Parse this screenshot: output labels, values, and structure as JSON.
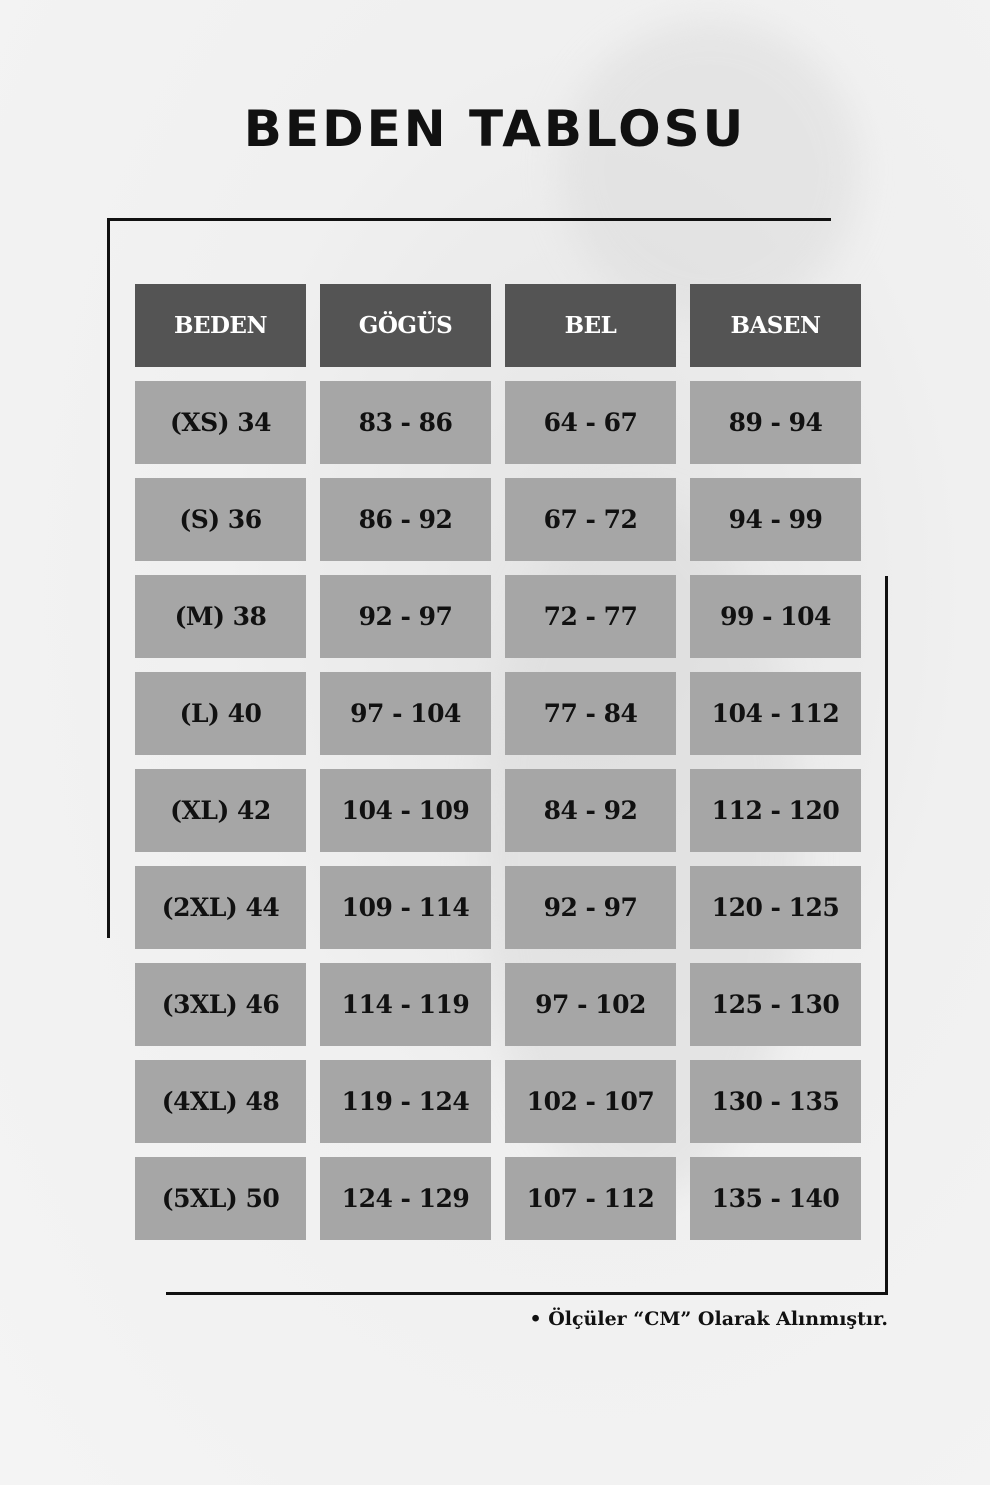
{
  "title": "BEDEN TABLOSU",
  "table": {
    "headers": [
      "BEDEN",
      "GÖGÜS",
      "BEL",
      "BASEN"
    ],
    "rows": [
      [
        "(XS) 34",
        "83 - 86",
        "64 - 67",
        "89 - 94"
      ],
      [
        "(S) 36",
        "86 - 92",
        "67 - 72",
        "94 - 99"
      ],
      [
        "(M) 38",
        "92 - 97",
        "72 - 77",
        "99 - 104"
      ],
      [
        "(L) 40",
        "97 - 104",
        "77 - 84",
        "104 - 112"
      ],
      [
        "(XL) 42",
        "104 - 109",
        "84 - 92",
        "112 - 120"
      ],
      [
        "(2XL) 44",
        "109 - 114",
        "92 - 97",
        "120 - 125"
      ],
      [
        "(3XL) 46",
        "114 - 119",
        "97 - 102",
        "125 - 130"
      ],
      [
        "(4XL) 48",
        "119 - 124",
        "102 - 107",
        "130 - 135"
      ],
      [
        "(5XL) 50",
        "124 - 129",
        "107 - 112",
        "135 - 140"
      ]
    ]
  },
  "note": "• Ölçüler “CM” Olarak Alınmıştır.",
  "colors": {
    "header_bg": "#545454",
    "cell_bg": "#a6a6a6",
    "text": "#111111"
  }
}
